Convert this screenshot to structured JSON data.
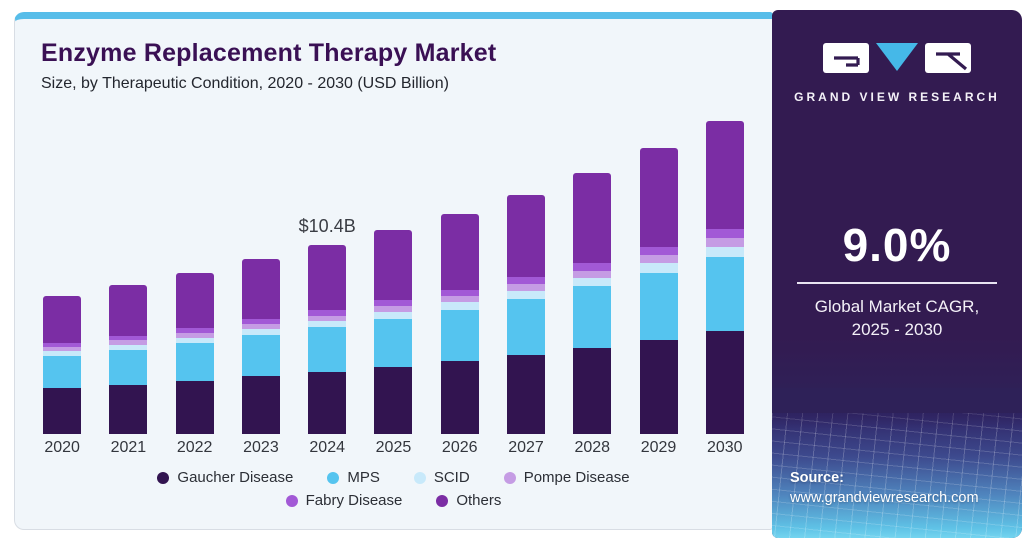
{
  "header": {
    "title": "Enzyme Replacement Therapy Market",
    "subtitle": "Size, by Therapeutic Condition, 2020 - 2030 (USD Billion)"
  },
  "chart_data": {
    "type": "bar",
    "stacked": true,
    "title": "Enzyme Replacement Therapy Market",
    "subtitle": "Size, by Therapeutic Condition, 2020 - 2030 (USD Billion)",
    "unit": "USD Billion",
    "grid": false,
    "y_axis_visible": false,
    "legend_position": "bottom",
    "ylim": [
      0,
      18
    ],
    "categories": [
      "2020",
      "2021",
      "2022",
      "2023",
      "2024",
      "2025",
      "2026",
      "2027",
      "2028",
      "2029",
      "2030"
    ],
    "series": [
      {
        "name": "Gaucher Disease",
        "color": "#321450",
        "values": [
          2.51,
          2.71,
          2.92,
          3.17,
          3.43,
          3.7,
          3.99,
          4.34,
          4.74,
          5.18,
          5.68
        ]
      },
      {
        "name": "MPS",
        "color": "#55c4ef",
        "values": [
          1.79,
          1.93,
          2.08,
          2.26,
          2.44,
          2.63,
          2.84,
          3.09,
          3.37,
          3.69,
          4.04
        ]
      },
      {
        "name": "SCID",
        "color": "#c8e9fa",
        "values": [
          0.25,
          0.27,
          0.29,
          0.32,
          0.34,
          0.37,
          0.4,
          0.43,
          0.47,
          0.52,
          0.57
        ]
      },
      {
        "name": "Pompe Disease",
        "color": "#c59ce4",
        "values": [
          0.21,
          0.23,
          0.25,
          0.27,
          0.29,
          0.31,
          0.34,
          0.37,
          0.4,
          0.44,
          0.48
        ]
      },
      {
        "name": "Fabry Disease",
        "color": "#a259d6",
        "values": [
          0.23,
          0.25,
          0.27,
          0.29,
          0.31,
          0.34,
          0.36,
          0.39,
          0.43,
          0.47,
          0.52
        ]
      },
      {
        "name": "Others",
        "color": "#7b2da4",
        "values": [
          2.61,
          2.82,
          3.04,
          3.3,
          3.58,
          3.85,
          4.16,
          4.52,
          4.94,
          5.4,
          5.91
        ]
      }
    ],
    "totals": [
      7.6,
      8.21,
      8.85,
      9.61,
      10.39,
      11.2,
      12.09,
      13.14,
      14.35,
      15.7,
      17.2
    ],
    "annotation": {
      "text": "$10.4B",
      "category": "2024"
    }
  },
  "sidebar": {
    "brand": "GRAND VIEW RESEARCH",
    "cagr_value": "9.0%",
    "cagr_caption_line1": "Global Market CAGR,",
    "cagr_caption_line2": "2025 - 2030",
    "source_label": "Source:",
    "source_url": "www.grandviewresearch.com"
  },
  "colors": {
    "accent_strip": "#57bde9",
    "card_background": "#f1f6fa",
    "panel_background": "#331b51",
    "title_text": "#3a1054",
    "logo_triangle": "#45b8e8"
  }
}
